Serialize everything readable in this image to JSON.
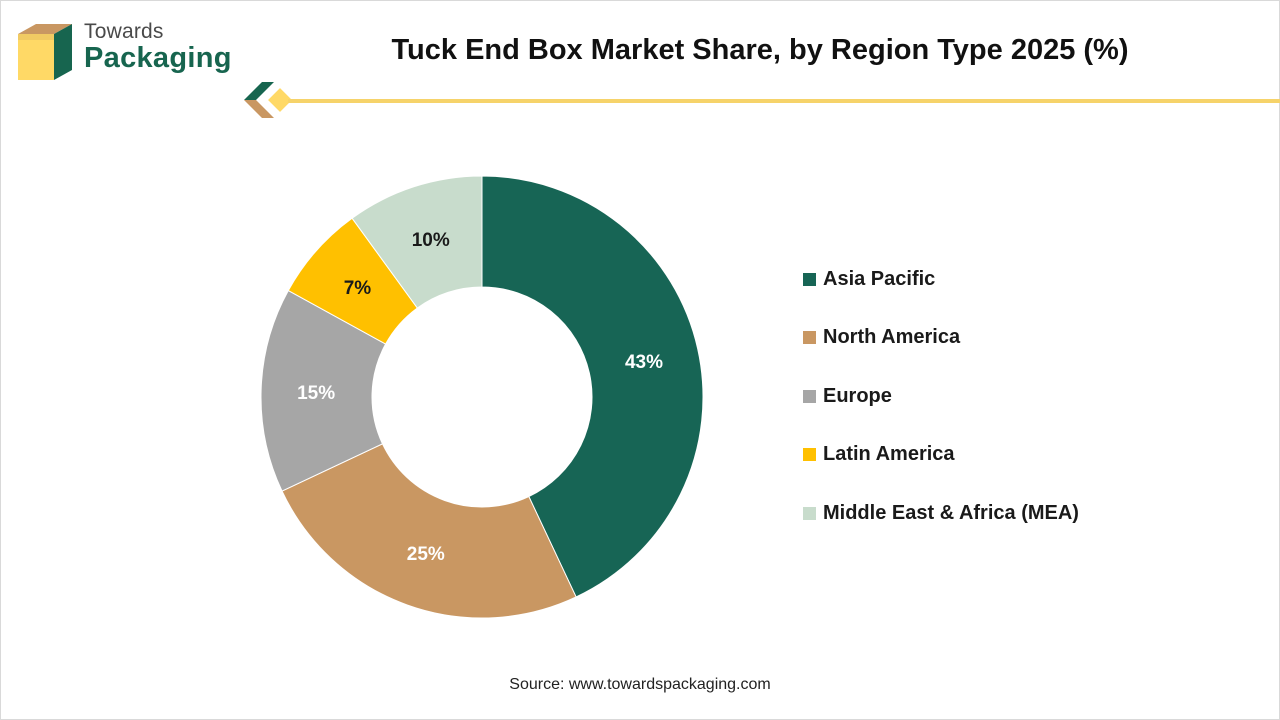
{
  "brand": {
    "line1": "Towards",
    "line2": "Packaging"
  },
  "header": {
    "title": "Tuck End Box Market Share, by Region Type 2025 (%)"
  },
  "chart_data": {
    "type": "pie",
    "variant": "donut",
    "title": "Tuck End Box Market Share, by Region Type 2025 (%)",
    "categories": [
      "Asia Pacific",
      "North America",
      "Europe",
      "Latin America",
      "Middle East & Africa (MEA)"
    ],
    "values": [
      43,
      25,
      15,
      7,
      10
    ],
    "labels": [
      "43%",
      "25%",
      "15%",
      "7%",
      "10%"
    ],
    "colors": [
      "#176555",
      "#c99762",
      "#a6a6a6",
      "#ffc000",
      "#c8dccc"
    ],
    "label_colors": [
      "#ffffff",
      "#ffffff",
      "#ffffff",
      "#1a1a1a",
      "#1a1a1a"
    ],
    "unit": "%",
    "legend_position": "right"
  },
  "footer": {
    "source": "Source: www.towardspackaging.com"
  }
}
